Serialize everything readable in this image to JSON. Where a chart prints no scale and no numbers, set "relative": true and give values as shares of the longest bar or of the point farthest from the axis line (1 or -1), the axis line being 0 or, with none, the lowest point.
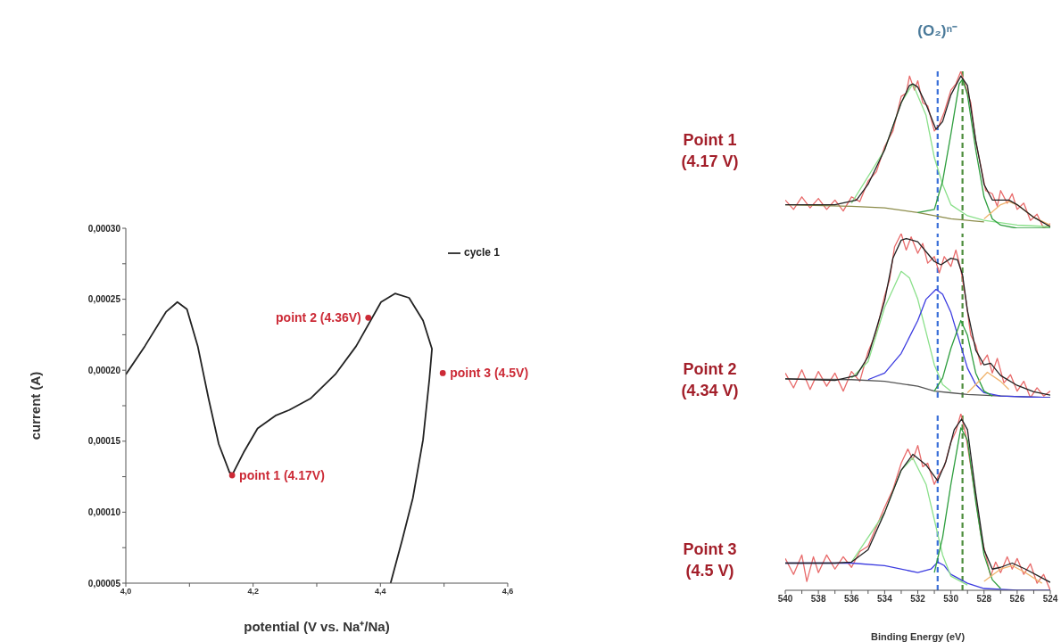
{
  "chart_data": [
    {
      "type": "line",
      "xlabel": "potential (V vs. Na⁺/Na)",
      "ylabel": "current (A)",
      "legend": "top right",
      "marker": "none",
      "xlim": [
        4.0,
        4.6
      ],
      "xticks": [
        {
          "value": 4.0,
          "label": "4,0"
        },
        {
          "value": 4.1,
          "label": null
        },
        {
          "value": 4.2,
          "label": "4,2"
        },
        {
          "value": 4.3,
          "label": null
        },
        {
          "value": 4.4,
          "label": "4,4"
        },
        {
          "value": 4.5,
          "label": null
        },
        {
          "value": 4.6,
          "label": "4,6"
        }
      ],
      "ylim": [
        5e-05,
        0.0003
      ],
      "yticks": [
        {
          "value": 5e-05,
          "label": "0,00005"
        },
        {
          "value": 7.5e-05,
          "label": null
        },
        {
          "value": 0.0001,
          "label": "0,00010"
        },
        {
          "value": 0.000125,
          "label": null
        },
        {
          "value": 0.00015,
          "label": "0,00015"
        },
        {
          "value": 0.000175,
          "label": null
        },
        {
          "value": 0.0002,
          "label": "0,00020"
        },
        {
          "value": 0.000225,
          "label": null
        },
        {
          "value": 0.00025,
          "label": "0,00025"
        },
        {
          "value": 0.000275,
          "label": null
        },
        {
          "value": 0.0003,
          "label": "0,00030"
        }
      ],
      "series": [
        {
          "name": "cycle 1",
          "color": "#222222",
          "x": [
            4.0,
            4.03,
            4.063,
            4.081,
            4.096,
            4.113,
            4.13,
            4.146,
            4.163,
            4.168,
            4.185,
            4.207,
            4.235,
            4.257,
            4.29,
            4.329,
            4.362,
            4.401,
            4.423,
            4.445,
            4.467,
            4.481,
            4.477,
            4.467,
            4.451,
            4.434,
            4.416
          ],
          "values": [
            0.000197,
            0.000217,
            0.000241,
            0.000248,
            0.000243,
            0.000217,
            0.00018,
            0.000148,
            0.000128,
            0.000127,
            0.000142,
            0.000159,
            0.000168,
            0.000172,
            0.00018,
            0.000197,
            0.000217,
            0.000248,
            0.000254,
            0.000251,
            0.000235,
            0.000215,
            0.000194,
            0.000151,
            0.00011,
            8e-05,
            5e-05
          ]
        },
        {
          "type": "scatter",
          "color": "#cc2a36",
          "marker": "circle",
          "x": [
            4.167,
            4.381,
            4.498
          ],
          "values": [
            0.000126,
            0.000237,
            0.000198
          ],
          "value_labels": [
            "point 1 (4.17V)",
            "point 2 (4.36V)",
            "point 3 (4.5V)"
          ]
        }
      ]
    },
    {
      "type": "line",
      "relative": true,
      "title": "Point 1 (4.17 V)",
      "xlim": [
        540,
        524
      ],
      "tick_labels": false,
      "ref_lines": [
        {
          "axis": "x",
          "value": 530.8,
          "label": "(O₂)ⁿ⁻",
          "color": "#3a6fd8",
          "line_style": "dashed"
        },
        {
          "axis": "x",
          "value": 529.3,
          "color": "#4c8c3c",
          "line_style": "dashed"
        }
      ],
      "series": [
        {
          "color": "#e86a6a",
          "x": [
            540,
            539.5,
            539,
            538.5,
            538,
            537.5,
            537,
            536.5,
            536,
            535.5,
            535,
            534.5,
            534,
            533.5,
            533,
            532.7,
            532.5,
            532.2,
            532,
            531.7,
            531.4,
            531,
            530.7,
            530.4,
            530,
            529.7,
            529.4,
            529.1,
            528.8,
            528.5,
            528.2,
            527.9,
            527.5,
            527.2,
            527,
            526.6,
            526.3,
            526,
            525.6,
            525.2,
            524.8,
            524.4,
            524
          ],
          "values": [
            0.18,
            0.12,
            0.2,
            0.13,
            0.19,
            0.12,
            0.18,
            0.11,
            0.2,
            0.17,
            0.3,
            0.36,
            0.52,
            0.62,
            0.84,
            0.86,
            0.97,
            0.88,
            0.94,
            0.8,
            0.78,
            0.62,
            0.66,
            0.74,
            0.88,
            0.92,
            1.0,
            0.9,
            0.8,
            0.55,
            0.4,
            0.24,
            0.22,
            0.14,
            0.24,
            0.16,
            0.22,
            0.12,
            0.16,
            0.05,
            0.09,
            0.0,
            0.03
          ]
        },
        {
          "color": "#8c8c4a",
          "x": [
            540,
            536,
            534,
            532,
            531,
            530,
            529,
            528
          ],
          "values": [
            0.15,
            0.14,
            0.13,
            0.1,
            0.08,
            0.06,
            0.05,
            0.04
          ]
        },
        {
          "color": "#8be08b",
          "x": [
            536,
            534,
            533,
            532.3,
            531.5,
            531,
            530.5,
            530,
            529,
            528,
            526,
            524
          ],
          "values": [
            0.16,
            0.5,
            0.8,
            0.92,
            0.72,
            0.45,
            0.28,
            0.15,
            0.08,
            0.05,
            0.02,
            0.01
          ]
        },
        {
          "color": "#2e9e3e",
          "x": [
            532,
            531,
            530.5,
            530,
            529.5,
            529.3,
            529,
            528.5,
            528,
            527.5,
            527,
            526,
            524
          ],
          "values": [
            0.1,
            0.12,
            0.3,
            0.6,
            0.92,
            0.95,
            0.85,
            0.5,
            0.2,
            0.06,
            0.02,
            0.0,
            0.0
          ]
        },
        {
          "color": "#f0b46e",
          "x": [
            528,
            527,
            526.5,
            526,
            525,
            524
          ],
          "values": [
            0.06,
            0.15,
            0.17,
            0.15,
            0.07,
            0.02
          ]
        },
        {
          "color": "#222222",
          "x": [
            540,
            537,
            535.7,
            535,
            534,
            533,
            532.5,
            532.3,
            532,
            531.5,
            530.9,
            530.5,
            530,
            529.4,
            529,
            528.5,
            528,
            527.5,
            527,
            526.5,
            526,
            525,
            524
          ],
          "values": [
            0.15,
            0.15,
            0.18,
            0.28,
            0.5,
            0.8,
            0.91,
            0.92,
            0.9,
            0.79,
            0.63,
            0.68,
            0.85,
            0.97,
            0.91,
            0.56,
            0.28,
            0.18,
            0.18,
            0.18,
            0.15,
            0.07,
            0.01
          ]
        }
      ]
    },
    {
      "type": "line",
      "relative": true,
      "title": "Point 2 (4.34 V)",
      "xlim": [
        540,
        524
      ],
      "tick_labels": false,
      "ref_lines": [
        {
          "axis": "x",
          "value": 530.8,
          "color": "#3a6fd8",
          "line_style": "dashed"
        },
        {
          "axis": "x",
          "value": 529.3,
          "color": "#4c8c3c",
          "line_style": "dashed"
        }
      ],
      "series": [
        {
          "color": "#e86a6a",
          "x": [
            540,
            539.5,
            539,
            538.5,
            538,
            537.5,
            537,
            536.5,
            536,
            535.5,
            535,
            534.5,
            534,
            533.7,
            533.4,
            533,
            532.7,
            532.4,
            532,
            531.7,
            531.4,
            531,
            530.7,
            530.4,
            530,
            529.7,
            529.4,
            529.1,
            528.8,
            528.5,
            528.2,
            527.8,
            527.5,
            527.2,
            526.8,
            526.4,
            526,
            525.6,
            525.2,
            524.8,
            524.4,
            524
          ],
          "values": [
            0.15,
            0.06,
            0.17,
            0.05,
            0.16,
            0.07,
            0.15,
            0.04,
            0.16,
            0.1,
            0.28,
            0.4,
            0.62,
            0.72,
            0.92,
            1.0,
            0.9,
            0.98,
            0.88,
            0.94,
            0.82,
            0.86,
            0.76,
            0.86,
            0.8,
            0.9,
            0.78,
            0.6,
            0.38,
            0.32,
            0.2,
            0.26,
            0.15,
            0.24,
            0.09,
            0.14,
            0.04,
            0.1,
            0.0,
            0.06,
            0.01,
            0.04
          ]
        },
        {
          "color": "#555555",
          "x": [
            540,
            536,
            534,
            532,
            531,
            530,
            529,
            527,
            524
          ],
          "values": [
            0.115,
            0.11,
            0.1,
            0.07,
            0.04,
            0.03,
            0.02,
            0.01,
            0.0
          ]
        },
        {
          "color": "#8be08b",
          "x": [
            536,
            535,
            534,
            533,
            532.5,
            532,
            531.5,
            531,
            530.5,
            530
          ],
          "values": [
            0.12,
            0.22,
            0.55,
            0.77,
            0.73,
            0.6,
            0.4,
            0.2,
            0.08,
            0.04
          ]
        },
        {
          "color": "#3c3ce0",
          "x": [
            535,
            534,
            533,
            532,
            531.5,
            530.9,
            530.5,
            530,
            529.5,
            529,
            528.5,
            528,
            527,
            524
          ],
          "values": [
            0.11,
            0.15,
            0.27,
            0.47,
            0.6,
            0.66,
            0.63,
            0.52,
            0.35,
            0.18,
            0.08,
            0.03,
            0.01,
            0.0
          ]
        },
        {
          "color": "#2e9e3e",
          "x": [
            531,
            530.5,
            530,
            529.4,
            529,
            528.5,
            528,
            527.5
          ],
          "values": [
            0.04,
            0.12,
            0.3,
            0.47,
            0.38,
            0.15,
            0.04,
            0.01
          ]
        },
        {
          "color": "#f0b46e",
          "x": [
            529,
            528.5,
            527.8,
            527,
            526.5
          ],
          "values": [
            0.03,
            0.08,
            0.155,
            0.1,
            0.05
          ]
        },
        {
          "color": "#222222",
          "x": [
            540,
            537,
            535.7,
            535,
            534,
            533.5,
            533,
            532.7,
            532,
            531.5,
            531,
            530.6,
            530,
            529.6,
            529.3,
            529,
            528.5,
            528,
            527.6,
            527,
            526,
            525,
            524
          ],
          "values": [
            0.115,
            0.105,
            0.135,
            0.25,
            0.59,
            0.85,
            0.96,
            0.97,
            0.95,
            0.89,
            0.83,
            0.81,
            0.85,
            0.84,
            0.75,
            0.53,
            0.29,
            0.2,
            0.21,
            0.135,
            0.075,
            0.036,
            0.016
          ]
        }
      ]
    },
    {
      "type": "line",
      "relative": true,
      "title": "Point 3 (4.5 V)",
      "xlabel": "Binding Energy (eV)",
      "xlim": [
        540,
        524
      ],
      "tick_labels": "x",
      "xticks": [
        540,
        {
          "value": 539,
          "label": null
        },
        538,
        {
          "value": 537,
          "label": null
        },
        536,
        {
          "value": 535,
          "label": null
        },
        534,
        {
          "value": 533,
          "label": null
        },
        532,
        {
          "value": 531,
          "label": null
        },
        530,
        {
          "value": 529,
          "label": null
        },
        528,
        {
          "value": 527,
          "label": null
        },
        526,
        {
          "value": 525,
          "label": null
        },
        524
      ],
      "ref_lines": [
        {
          "axis": "x",
          "value": 530.8,
          "color": "#3a6fd8",
          "line_style": "dashed"
        },
        {
          "axis": "x",
          "value": 529.3,
          "color": "#4c8c3c",
          "line_style": "dashed"
        }
      ],
      "series": [
        {
          "color": "#e86a6a",
          "x": [
            540,
            539.5,
            539,
            538.7,
            538.3,
            538,
            537.5,
            537,
            536.5,
            536,
            535.5,
            535,
            534.5,
            534,
            533.5,
            533,
            532.6,
            532.3,
            532,
            531.7,
            531.4,
            531,
            530.7,
            530.4,
            530,
            529.7,
            529.4,
            529.1,
            528.8,
            528.5,
            528.2,
            527.9,
            527.6,
            527.3,
            527,
            526.6,
            526.3,
            526,
            525.6,
            525.2,
            524.8,
            524.4,
            524
          ],
          "values": [
            0.18,
            0.09,
            0.2,
            0.05,
            0.19,
            0.1,
            0.2,
            0.12,
            0.19,
            0.13,
            0.22,
            0.25,
            0.36,
            0.47,
            0.57,
            0.72,
            0.8,
            0.74,
            0.82,
            0.7,
            0.72,
            0.6,
            0.66,
            0.7,
            0.84,
            0.9,
            1.0,
            0.88,
            0.7,
            0.52,
            0.32,
            0.2,
            0.08,
            0.16,
            0.1,
            0.19,
            0.12,
            0.18,
            0.09,
            0.15,
            0.04,
            0.09,
            0.0
          ]
        },
        {
          "color": "#3c3ce0",
          "x": [
            540,
            536,
            534,
            532,
            531.2,
            530.8,
            530.4,
            530,
            529,
            528,
            526,
            524
          ],
          "values": [
            0.154,
            0.154,
            0.14,
            0.1,
            0.12,
            0.16,
            0.14,
            0.09,
            0.04,
            0.01,
            0.0,
            0.0
          ]
        },
        {
          "color": "#8be08b",
          "x": [
            536,
            534,
            533,
            532.3,
            531.5,
            531,
            530.5,
            530,
            529
          ],
          "values": [
            0.16,
            0.44,
            0.68,
            0.75,
            0.6,
            0.4,
            0.2,
            0.08,
            0.03
          ]
        },
        {
          "color": "#2e9e3e",
          "x": [
            531,
            530.5,
            530,
            529.4,
            529,
            528.5,
            528,
            527.5,
            527
          ],
          "values": [
            0.1,
            0.3,
            0.6,
            0.92,
            0.85,
            0.5,
            0.2,
            0.06,
            0.01
          ]
        },
        {
          "color": "#f0b46e",
          "x": [
            528,
            527,
            526.3,
            525.5,
            524.5
          ],
          "values": [
            0.05,
            0.12,
            0.14,
            0.1,
            0.04
          ]
        },
        {
          "color": "#222222",
          "x": [
            540,
            537,
            536,
            535,
            534,
            533,
            532.3,
            531.5,
            530.8,
            530.3,
            529.8,
            529.35,
            529,
            528.5,
            528,
            527.5,
            527,
            526.3,
            525.5,
            524
          ],
          "values": [
            0.154,
            0.154,
            0.16,
            0.23,
            0.44,
            0.68,
            0.77,
            0.71,
            0.62,
            0.73,
            0.91,
            0.97,
            0.91,
            0.55,
            0.23,
            0.12,
            0.13,
            0.154,
            0.12,
            0.045
          ]
        }
      ]
    }
  ]
}
